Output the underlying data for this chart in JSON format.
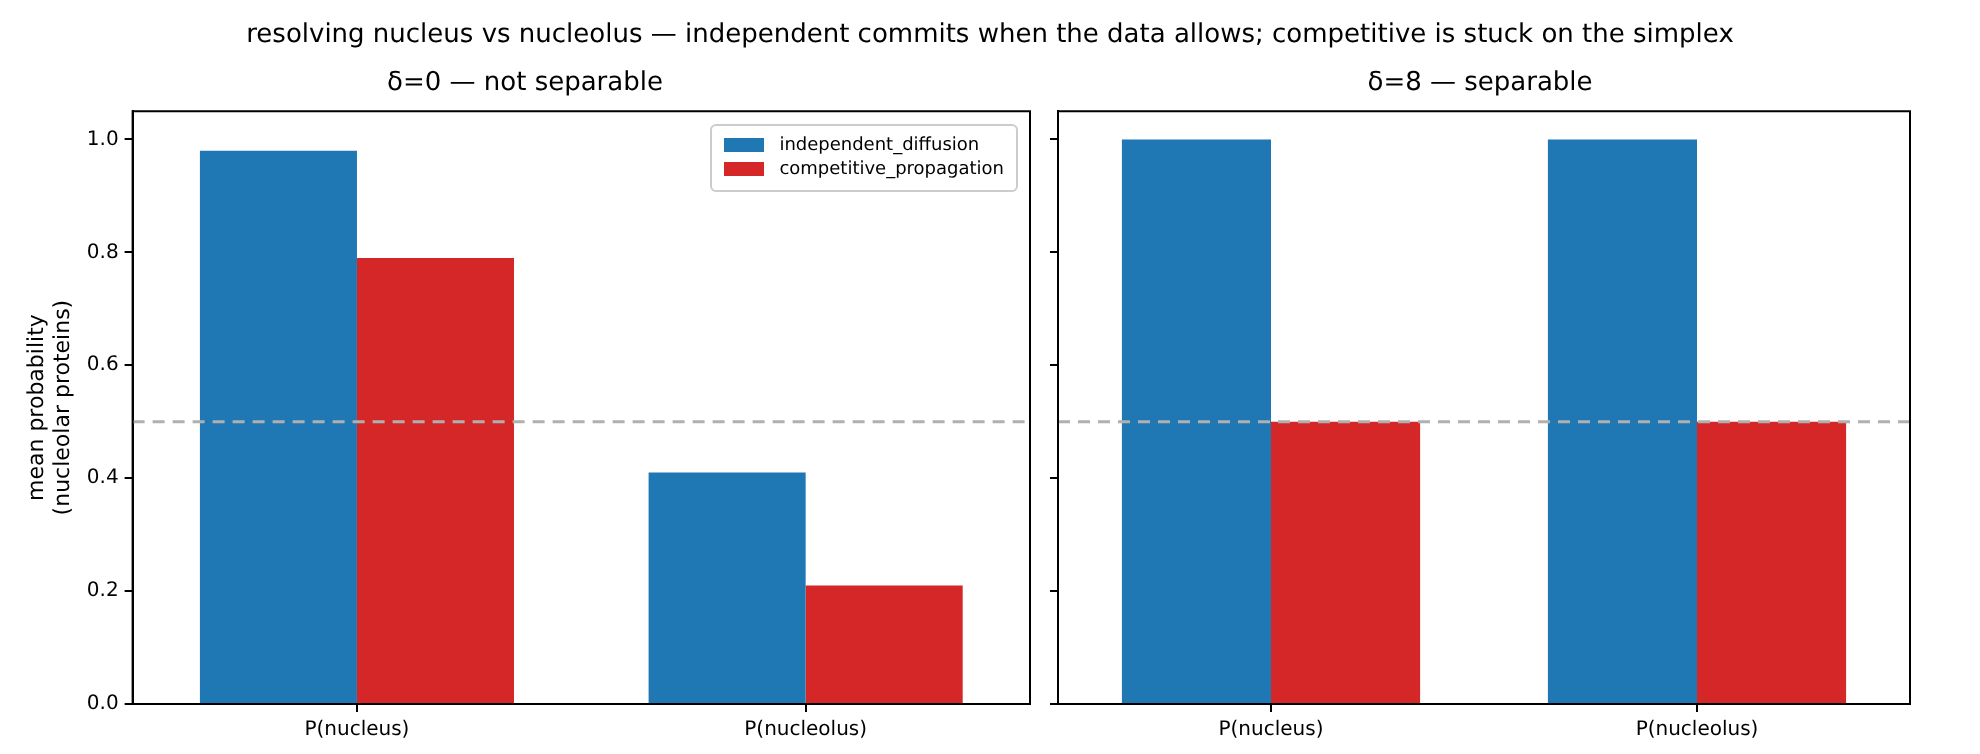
{
  "chart_data": [
    {
      "type": "bar",
      "title": "δ=0 — not separable",
      "annotations": [
        "resolving nucleus vs nucleolus — independent commits when the data allows; competitive is stuck on the simplex"
      ],
      "ylabel": "mean probability\n(nucleolar proteins)",
      "categories": [
        "P(nucleus)",
        "P(nucleolus)"
      ],
      "series": [
        {
          "name": "independent_diffusion",
          "color": "#1f77b4",
          "values": [
            0.98,
            0.41
          ]
        },
        {
          "name": "competitive_propagation",
          "color": "#d62728",
          "values": [
            0.79,
            0.21
          ]
        }
      ],
      "ylim": [
        0,
        1.05
      ],
      "yticks": [
        {
          "value": 0,
          "label": "0.0"
        },
        {
          "value": 0.2,
          "label": "0.2"
        },
        {
          "value": 0.4,
          "label": "0.4"
        },
        {
          "value": 0.6,
          "label": "0.6"
        },
        {
          "value": 0.8,
          "label": "0.8"
        },
        {
          "value": 1,
          "label": "1.0"
        }
      ],
      "ref_lines": [
        {
          "axis": "y",
          "value": 0.5,
          "color": "#b0b0b0",
          "line_style": "dashed"
        }
      ],
      "legend": "top right",
      "grid": false
    },
    {
      "type": "bar",
      "title": "δ=8 — separable",
      "categories": [
        "P(nucleus)",
        "P(nucleolus)"
      ],
      "series": [
        {
          "color": "#1f77b4",
          "values": [
            1.0,
            1.0
          ]
        },
        {
          "color": "#d62728",
          "values": [
            0.5,
            0.5
          ]
        }
      ],
      "ylim": [
        0,
        1.05
      ],
      "yticks": [
        0,
        0.2,
        0.4,
        0.6,
        0.8,
        1
      ],
      "tick_labels": "x",
      "ref_lines": [
        {
          "axis": "y",
          "value": 0.5,
          "color": "#b0b0b0",
          "line_style": "dashed"
        }
      ],
      "legend": false,
      "grid": false
    }
  ]
}
